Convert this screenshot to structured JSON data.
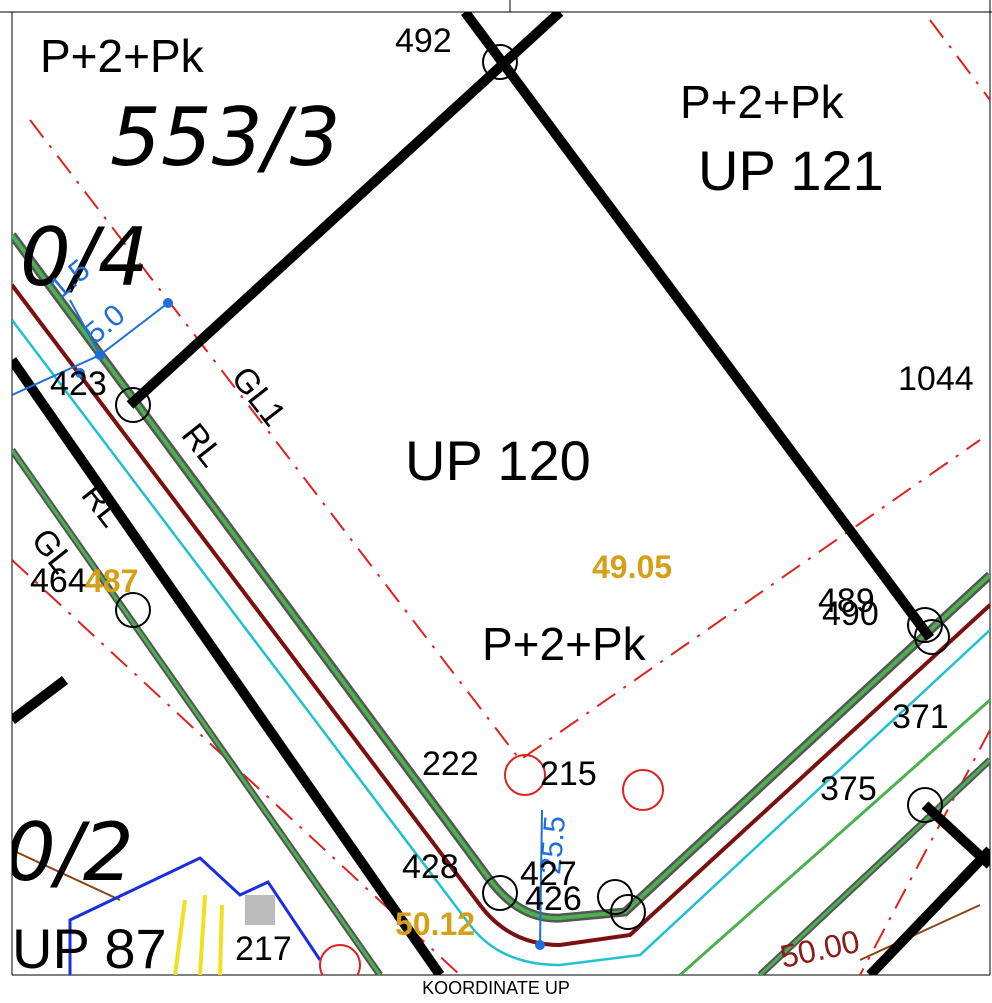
{
  "map": {
    "labels": [
      "P+2+Pk",
      "492",
      "553/3",
      "P+2+Pk",
      "UP 121",
      "0/4",
      "1.5",
      "5.0",
      "423",
      "GL1",
      "RL",
      "1044",
      "UP 120",
      "49.05",
      "RL",
      "GL",
      "464",
      "487",
      "489",
      "490",
      "P+2+Pk",
      "222",
      "215",
      "371",
      "375",
      "25.5",
      "428",
      "427",
      "426",
      "0/2",
      "UP 87",
      "217",
      "50.12",
      "50.00"
    ],
    "caption": "KOORDINATE UP"
  }
}
